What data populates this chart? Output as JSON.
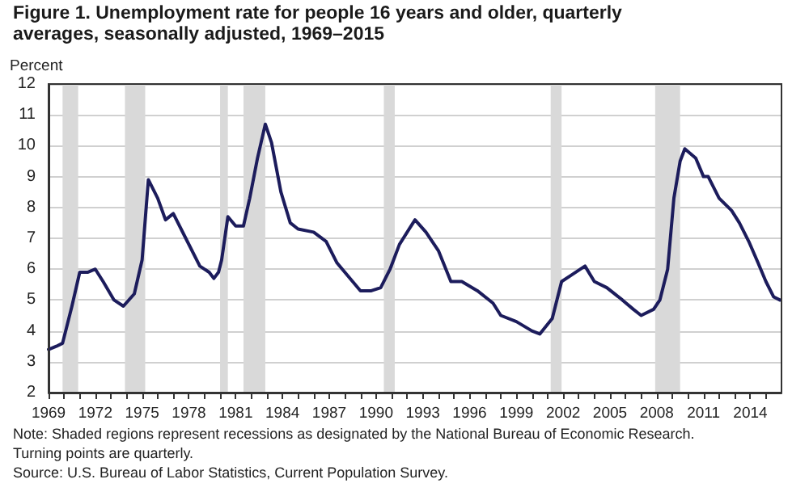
{
  "chart_data": {
    "type": "line",
    "title": "Figure 1. Unemployment rate for people 16 years and older, quarterly averages, seasonally adjusted, 1969–2015",
    "ylabel": "Percent",
    "x": [
      1969.0,
      1969.5,
      1969.9,
      1970.5,
      1971.0,
      1971.5,
      1972.0,
      1972.5,
      1973.2,
      1973.8,
      1974.5,
      1975.0,
      1975.4,
      1976.0,
      1976.5,
      1977.0,
      1977.8,
      1978.7,
      1979.3,
      1979.6,
      1979.9,
      1980.1,
      1980.5,
      1981.0,
      1981.5,
      1981.9,
      1982.4,
      1982.9,
      1983.3,
      1983.9,
      1984.5,
      1985.0,
      1986.0,
      1986.8,
      1987.5,
      1988.5,
      1989.0,
      1989.7,
      1990.3,
      1990.9,
      1991.5,
      1992.5,
      1993.2,
      1994.0,
      1994.8,
      1995.5,
      1996.5,
      1997.5,
      1998.0,
      1999.0,
      2000.0,
      2000.5,
      2001.3,
      2001.9,
      2002.5,
      2003.4,
      2004.0,
      2004.8,
      2005.8,
      2006.5,
      2007.0,
      2007.8,
      2008.2,
      2008.7,
      2009.1,
      2009.5,
      2009.8,
      2010.5,
      2011.0,
      2011.3,
      2012.0,
      2012.8,
      2013.3,
      2013.9,
      2014.5,
      2015.0,
      2015.5,
      2015.9
    ],
    "series": [
      {
        "color": "#1c1c5c",
        "values": [
          3.4,
          3.5,
          3.6,
          4.8,
          5.9,
          5.9,
          6.0,
          5.6,
          5.0,
          4.8,
          5.2,
          6.3,
          8.9,
          8.3,
          7.6,
          7.8,
          7.0,
          6.1,
          5.9,
          5.7,
          5.9,
          6.3,
          7.7,
          7.4,
          7.4,
          8.3,
          9.6,
          10.7,
          10.1,
          8.5,
          7.5,
          7.3,
          7.2,
          6.9,
          6.2,
          5.6,
          5.3,
          5.3,
          5.4,
          6.0,
          6.8,
          7.6,
          7.2,
          6.6,
          5.6,
          5.6,
          5.3,
          4.9,
          4.5,
          4.3,
          4.0,
          3.9,
          4.4,
          5.6,
          5.8,
          6.1,
          5.6,
          5.4,
          5.0,
          4.7,
          4.5,
          4.7,
          5.0,
          6.0,
          8.3,
          9.5,
          9.9,
          9.6,
          9.0,
          9.0,
          8.3,
          7.9,
          7.5,
          6.9,
          6.2,
          5.6,
          5.1,
          5.0
        ]
      }
    ],
    "xlim": [
      1969,
      2016
    ],
    "xticks": [
      1969,
      {
        "value": 1970,
        "label": null
      },
      {
        "value": 1971,
        "label": null
      },
      1972,
      {
        "value": 1973,
        "label": null
      },
      {
        "value": 1974,
        "label": null
      },
      1975,
      {
        "value": 1976,
        "label": null
      },
      {
        "value": 1977,
        "label": null
      },
      1978,
      {
        "value": 1979,
        "label": null
      },
      {
        "value": 1980,
        "label": null
      },
      1981,
      {
        "value": 1982,
        "label": null
      },
      {
        "value": 1983,
        "label": null
      },
      1984,
      {
        "value": 1985,
        "label": null
      },
      {
        "value": 1986,
        "label": null
      },
      1987,
      {
        "value": 1988,
        "label": null
      },
      {
        "value": 1989,
        "label": null
      },
      1990,
      {
        "value": 1991,
        "label": null
      },
      {
        "value": 1992,
        "label": null
      },
      1993,
      {
        "value": 1994,
        "label": null
      },
      {
        "value": 1995,
        "label": null
      },
      1996,
      {
        "value": 1997,
        "label": null
      },
      {
        "value": 1998,
        "label": null
      },
      1999,
      {
        "value": 2000,
        "label": null
      },
      {
        "value": 2001,
        "label": null
      },
      2002,
      {
        "value": 2003,
        "label": null
      },
      {
        "value": 2004,
        "label": null
      },
      2005,
      {
        "value": 2006,
        "label": null
      },
      {
        "value": 2007,
        "label": null
      },
      2008,
      {
        "value": 2009,
        "label": null
      },
      {
        "value": 2010,
        "label": null
      },
      2011,
      {
        "value": 2012,
        "label": null
      },
      {
        "value": 2013,
        "label": null
      },
      2014,
      {
        "value": 2015,
        "label": null
      }
    ],
    "ylim": [
      2,
      12
    ],
    "yticks": [
      2,
      3,
      4,
      5,
      6,
      7,
      8,
      9,
      10,
      11,
      12
    ],
    "grid": "y",
    "marker": "none",
    "line_style": "solid",
    "bands": [
      {
        "axis": "x",
        "from": 1969.9,
        "to": 1970.9,
        "color": "#d9d9d9"
      },
      {
        "axis": "x",
        "from": 1973.9,
        "to": 1975.2,
        "color": "#d9d9d9"
      },
      {
        "axis": "x",
        "from": 1980.0,
        "to": 1980.5,
        "color": "#d9d9d9"
      },
      {
        "axis": "x",
        "from": 1981.5,
        "to": 1982.9,
        "color": "#d9d9d9"
      },
      {
        "axis": "x",
        "from": 1990.5,
        "to": 1991.2,
        "color": "#d9d9d9"
      },
      {
        "axis": "x",
        "from": 2001.2,
        "to": 2001.9,
        "color": "#d9d9d9"
      },
      {
        "axis": "x",
        "from": 2007.9,
        "to": 2009.5,
        "color": "#d9d9d9"
      }
    ],
    "annotations": [
      "Note: Shaded regions represent recessions as designated by the National Bureau of Economic Research.",
      "Turning points are quarterly.",
      "Source: U.S. Bureau of Labor Statistics, Current Population Survey."
    ]
  }
}
